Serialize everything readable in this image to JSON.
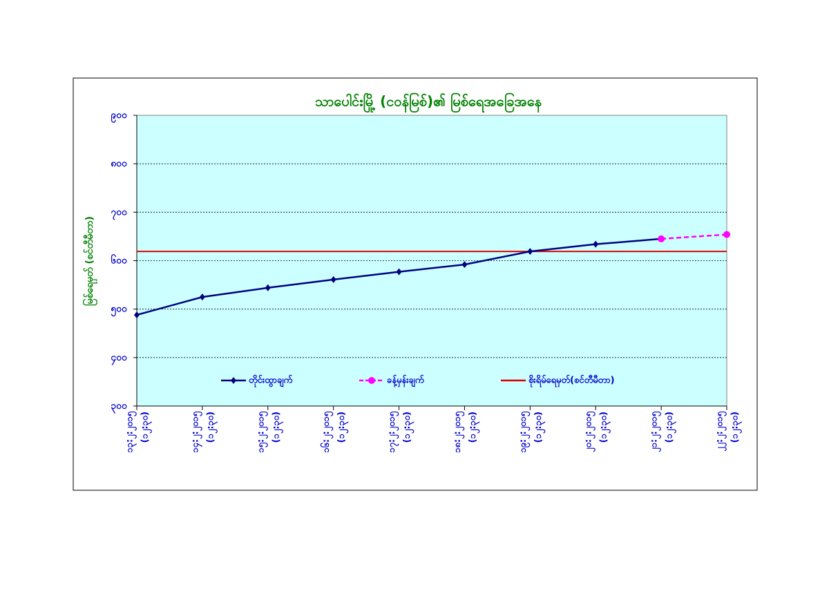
{
  "chart_data": {
    "type": "line",
    "title": "သာပေါင်းမြို့ (ငဝန်မြစ်)၏ မြစ်ရေအခြေအနေ",
    "y_label": "မြစ်ရေမှတ် (စင်တီမီတာ)",
    "categories": [
      [
        "၁၃:၂:၂၀၁၅",
        "(၁၂:၃၀)"
      ],
      [
        "၁၄:၂:၂၀၁၅",
        "(၁၂:၃၀)"
      ],
      [
        "၁၅:၂:၂၀၁၅",
        "(၁၂:၃၀)"
      ],
      [
        "၁၆:၂:၂၀၁၅",
        "(၁၂:၃၀)"
      ],
      [
        "၁၇:၂:၂၀၁၅",
        "(၁၂:၃၀)"
      ],
      [
        "၁၈:၂:၂၀၁၅",
        "(၁၂:၃၀)"
      ],
      [
        "၁၉:၂:၂၀၁၅",
        "(၁၂:၃၀)"
      ],
      [
        "၂၀:၂:၂၀၁၅",
        "(၁၂:၃၀)"
      ],
      [
        "၂၁:၂:၂၀၁၅",
        "(၁၂:၃၀)"
      ],
      [
        "၂၂:၂:၂၀၁၅",
        "(၁၂:၃၀)"
      ]
    ],
    "series": [
      {
        "name": "တိုင်းထွာချက်",
        "color": "#000080",
        "marker": "diamond",
        "dash": false,
        "values": [
          488,
          525,
          544,
          561,
          577,
          592,
          619,
          634,
          645,
          null
        ]
      },
      {
        "name": "ခန့်မှန်းချက်",
        "color": "#ff00ff",
        "marker": "circle",
        "dash": true,
        "values": [
          null,
          null,
          null,
          null,
          null,
          null,
          null,
          null,
          645,
          654
        ]
      }
    ],
    "danger_level": {
      "name": "စိုးရိမ်ရေမှတ်(စင်တီမီတာ)",
      "value": 619,
      "color": "#e00000"
    },
    "ylim": [
      300,
      900
    ],
    "yticks": [
      {
        "value": 300,
        "label": "၃၀၀"
      },
      {
        "value": 400,
        "label": "၄၀၀"
      },
      {
        "value": 500,
        "label": "၅၀၀"
      },
      {
        "value": 600,
        "label": "၆၀၀"
      },
      {
        "value": 700,
        "label": "၇၀၀"
      },
      {
        "value": 800,
        "label": "၈၀၀"
      },
      {
        "value": 900,
        "label": "၉၀၀"
      }
    ],
    "grid": true,
    "plot_background": "#ccffff"
  }
}
